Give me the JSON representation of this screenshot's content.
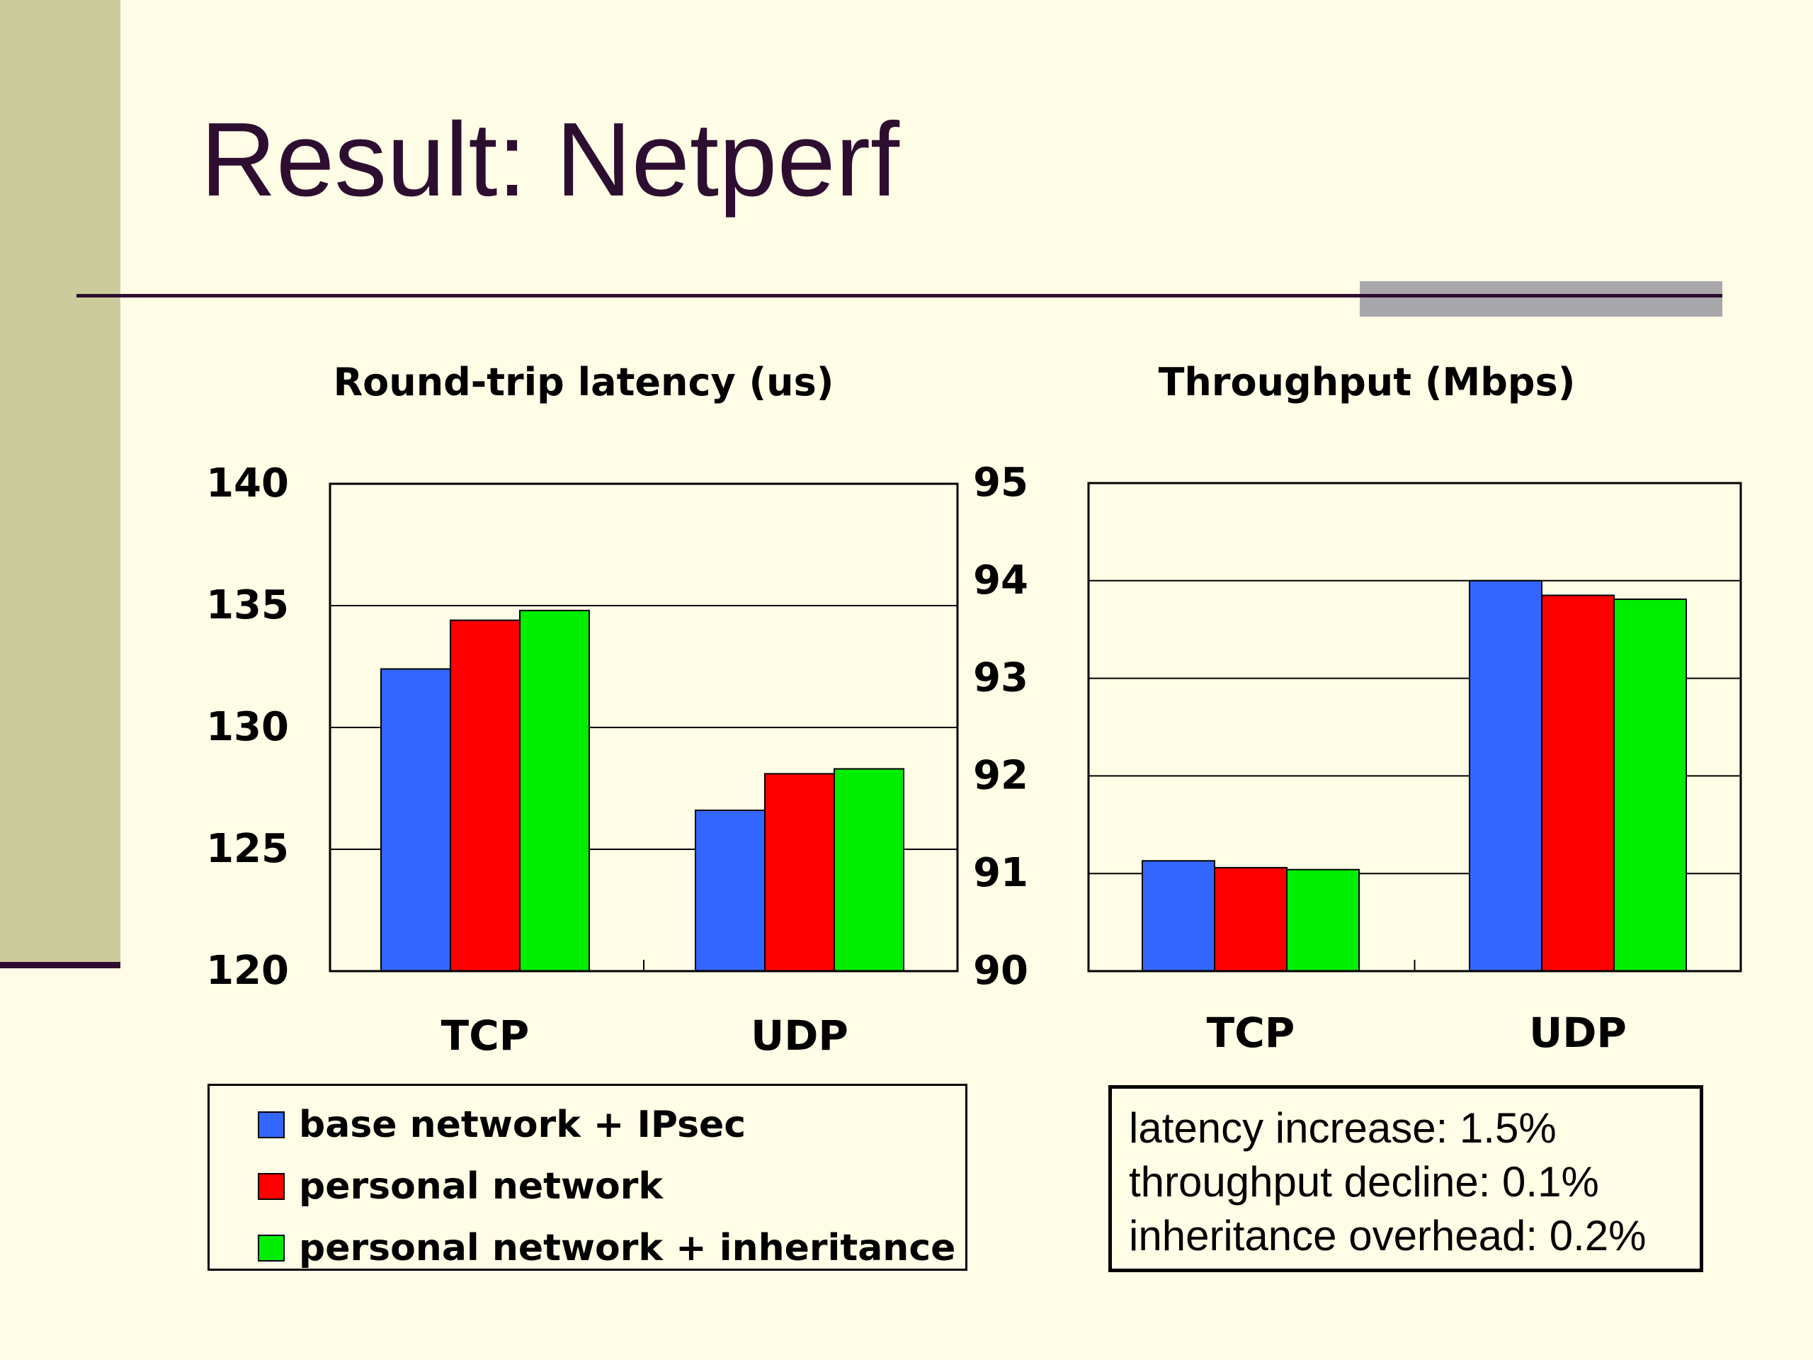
{
  "slide": {
    "title": "Result: Netperf"
  },
  "colors": {
    "background": "#fffde6",
    "sidebar": "#cccb9b",
    "title_text": "#2e0e30",
    "accent_bar": "#a8a8ab",
    "series_base": "#3366ff",
    "series_personal": "#ff0000",
    "series_inheritance": "#00ee00"
  },
  "chart_data": [
    {
      "type": "bar",
      "title": "Round-trip latency (us)",
      "categories": [
        "TCP",
        "UDP"
      ],
      "series": [
        {
          "name": "base network + IPsec",
          "values": [
            132.4,
            126.6
          ]
        },
        {
          "name": "personal network",
          "values": [
            134.4,
            128.1
          ]
        },
        {
          "name": "personal network + inheritance",
          "values": [
            134.8,
            128.3
          ]
        }
      ],
      "ylim": [
        120,
        140
      ],
      "yticks": [
        "120",
        "125",
        "130",
        "135",
        "140"
      ],
      "grid": true
    },
    {
      "type": "bar",
      "title": "Throughput (Mbps)",
      "categories": [
        "TCP",
        "UDP"
      ],
      "series": [
        {
          "name": "base network + IPsec",
          "values": [
            91.13,
            94.0
          ]
        },
        {
          "name": "personal network",
          "values": [
            91.06,
            93.85
          ]
        },
        {
          "name": "personal network + inheritance",
          "values": [
            91.04,
            93.81
          ]
        }
      ],
      "ylim": [
        90,
        95
      ],
      "yticks": [
        "90",
        "91",
        "92",
        "93",
        "94",
        "95"
      ],
      "grid": true
    }
  ],
  "legend": {
    "items": [
      {
        "label": "base network + IPsec",
        "color": "#3366ff"
      },
      {
        "label": "personal network",
        "color": "#ff0000"
      },
      {
        "label": "personal network + inheritance",
        "color": "#00ee00"
      }
    ]
  },
  "notes": [
    "latency increase: 1.5%",
    "throughput decline: 0.1%",
    "inheritance overhead: 0.2%"
  ]
}
